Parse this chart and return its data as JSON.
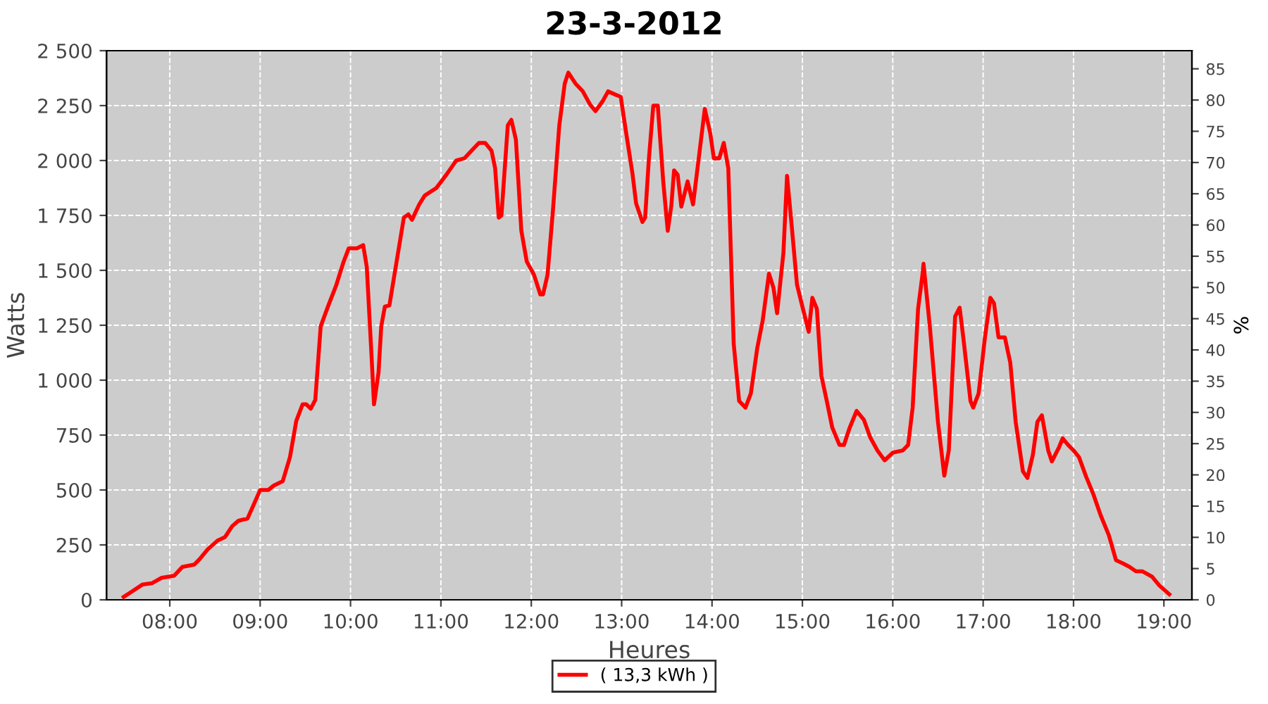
{
  "chart_data": {
    "type": "line",
    "title": "23-3-2012",
    "xlabel": "Heures",
    "ylabel": "Watts",
    "y2label": "%",
    "xlim": [
      7.3,
      19.31
    ],
    "ylim": [
      0,
      2500
    ],
    "y2lim": [
      0,
      87.9
    ],
    "xticks": [
      {
        "value": 8,
        "label": "08:00"
      },
      {
        "value": 9,
        "label": "09:00"
      },
      {
        "value": 10,
        "label": "10:00"
      },
      {
        "value": 11,
        "label": "11:00"
      },
      {
        "value": 12,
        "label": "12:00"
      },
      {
        "value": 13,
        "label": "13:00"
      },
      {
        "value": 14,
        "label": "14:00"
      },
      {
        "value": 15,
        "label": "15:00"
      },
      {
        "value": 16,
        "label": "16:00"
      },
      {
        "value": 17,
        "label": "17:00"
      },
      {
        "value": 18,
        "label": "18:00"
      },
      {
        "value": 19,
        "label": "19:00"
      }
    ],
    "yticks": [
      0,
      250,
      500,
      750,
      {
        "value": 1000,
        "label": "1 000"
      },
      {
        "value": 1250,
        "label": "1 250"
      },
      {
        "value": 1500,
        "label": "1 500"
      },
      {
        "value": 1750,
        "label": "1 750"
      },
      {
        "value": 2000,
        "label": "2 000"
      },
      {
        "value": 2250,
        "label": "2 250"
      },
      {
        "value": 2500,
        "label": "2 500"
      }
    ],
    "y2ticks": [
      0,
      5,
      10,
      15,
      20,
      25,
      30,
      35,
      40,
      45,
      50,
      55,
      60,
      65,
      70,
      75,
      80,
      85
    ],
    "grid": true,
    "legend": "bottom",
    "marker": "none",
    "line_style": "solid",
    "series": [
      {
        "name": "( 13,3 kWh )",
        "color": "#ff0000",
        "x": [
          7.49,
          7.59,
          7.7,
          7.8,
          7.91,
          8.05,
          8.14,
          8.27,
          8.33,
          8.42,
          8.53,
          8.61,
          8.69,
          8.76,
          8.86,
          8.92,
          9.0,
          9.09,
          9.15,
          9.25,
          9.33,
          9.4,
          9.47,
          9.51,
          9.56,
          9.61,
          9.67,
          9.75,
          9.84,
          9.92,
          9.98,
          10.07,
          10.14,
          10.18,
          10.23,
          10.26,
          10.31,
          10.34,
          10.38,
          10.43,
          10.5,
          10.59,
          10.64,
          10.68,
          10.76,
          10.82,
          10.95,
          11.06,
          11.17,
          11.26,
          11.34,
          11.42,
          11.49,
          11.56,
          11.6,
          11.64,
          11.67,
          11.74,
          11.78,
          11.83,
          11.89,
          11.95,
          12.03,
          12.1,
          12.13,
          12.18,
          12.24,
          12.31,
          12.37,
          12.41,
          12.49,
          12.57,
          12.65,
          12.71,
          12.79,
          12.85,
          12.93,
          12.99,
          13.05,
          13.12,
          13.16,
          13.23,
          13.26,
          13.3,
          13.35,
          13.4,
          13.46,
          13.51,
          13.55,
          13.58,
          13.62,
          13.66,
          13.73,
          13.79,
          13.85,
          13.92,
          13.98,
          14.02,
          14.08,
          14.13,
          14.18,
          14.24,
          14.3,
          14.37,
          14.43,
          14.5,
          14.56,
          14.63,
          14.68,
          14.72,
          14.79,
          14.83,
          14.88,
          14.94,
          15.0,
          15.07,
          15.11,
          15.16,
          15.21,
          15.27,
          15.33,
          15.41,
          15.46,
          15.52,
          15.6,
          15.68,
          15.75,
          15.83,
          15.91,
          16.0,
          16.11,
          16.17,
          16.22,
          16.28,
          16.33,
          16.34,
          16.41,
          16.5,
          16.57,
          16.62,
          16.69,
          16.74,
          16.78,
          16.86,
          16.89,
          16.95,
          17.02,
          17.08,
          17.12,
          17.17,
          17.24,
          17.3,
          17.36,
          17.44,
          17.49,
          17.55,
          17.6,
          17.65,
          17.72,
          17.76,
          17.84,
          17.88,
          17.94,
          18.0,
          18.06,
          18.14,
          18.22,
          18.3,
          18.39,
          18.47,
          18.55,
          18.62,
          18.69,
          18.76,
          18.87,
          18.95,
          19.06
        ],
        "values": [
          13,
          40,
          70,
          75,
          100,
          110,
          150,
          160,
          185,
          230,
          270,
          285,
          335,
          360,
          370,
          425,
          500,
          500,
          520,
          540,
          650,
          815,
          890,
          890,
          870,
          910,
          1245,
          1335,
          1430,
          1535,
          1600,
          1600,
          1615,
          1515,
          1130,
          890,
          1035,
          1245,
          1335,
          1340,
          1515,
          1740,
          1755,
          1730,
          1800,
          1840,
          1875,
          1935,
          2000,
          2010,
          2045,
          2080,
          2080,
          2045,
          1965,
          1740,
          1750,
          2160,
          2185,
          2095,
          1680,
          1540,
          1480,
          1390,
          1390,
          1480,
          1775,
          2160,
          2350,
          2400,
          2350,
          2315,
          2255,
          2225,
          2270,
          2315,
          2300,
          2290,
          2125,
          1940,
          1805,
          1720,
          1740,
          2000,
          2250,
          2250,
          1905,
          1680,
          1795,
          1955,
          1935,
          1790,
          1905,
          1800,
          2000,
          2235,
          2125,
          2010,
          2010,
          2080,
          1965,
          1165,
          905,
          875,
          940,
          1145,
          1270,
          1485,
          1420,
          1305,
          1580,
          1930,
          1710,
          1435,
          1335,
          1220,
          1375,
          1325,
          1020,
          905,
          785,
          705,
          705,
          780,
          860,
          820,
          740,
          680,
          635,
          670,
          680,
          705,
          875,
          1325,
          1485,
          1530,
          1245,
          810,
          565,
          680,
          1290,
          1330,
          1195,
          905,
          875,
          940,
          1195,
          1375,
          1350,
          1195,
          1195,
          1080,
          810,
          585,
          555,
          660,
          810,
          840,
          680,
          630,
          695,
          735,
          705,
          680,
          650,
          560,
          480,
          385,
          295,
          180,
          165,
          150,
          130,
          130,
          105,
          65,
          25
        ]
      }
    ]
  }
}
